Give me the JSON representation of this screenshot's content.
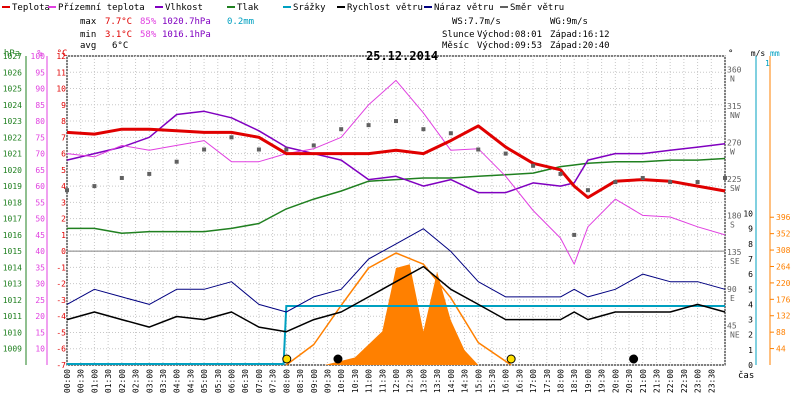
{
  "legend": [
    {
      "label": "Teplota",
      "color": "#e00000"
    },
    {
      "label": "Přízemní teplota",
      "color": "#e040e0"
    },
    {
      "label": "Vlhkost",
      "color": "#8000c0"
    },
    {
      "label": "Tlak",
      "color": "#208020"
    },
    {
      "label": "Srážky",
      "color": "#00a0c0"
    },
    {
      "label": "Rychlost větru",
      "color": "#000000"
    },
    {
      "label": "Náraz větru",
      "color": "#000080"
    },
    {
      "label": "Směr větru",
      "color": "#606060"
    }
  ],
  "stats": {
    "max_label": "max",
    "max_temp": "7.7°C",
    "max_hum": "85%",
    "max_press": "1020.7hPa",
    "max_rain": "0.2mm",
    "min_label": "min",
    "min_temp": "3.1°C",
    "min_hum": "58%",
    "min_press": "1016.1hPa",
    "avg_label": "avg",
    "avg_temp": "6°C"
  },
  "wind": {
    "ws": "WS:7.7m/s",
    "wg": "WG:9m/s"
  },
  "sun": {
    "label": "Slunce",
    "rise": "Východ:08:01",
    "set": "Západ:16:12"
  },
  "moon": {
    "label": "Měsíc",
    "rise": "Východ:09:53",
    "set": "Západ:20:40"
  },
  "date": "25.12.2014",
  "time_axis_label": "čas",
  "colors": {
    "temp": "#e00000",
    "ground": "#e040e0",
    "hum": "#8000c0",
    "press": "#208020",
    "rain": "#00a0c0",
    "speed": "#000000",
    "gust": "#000080",
    "dir": "#606060",
    "fill": "#ff8000"
  },
  "chart_data": {
    "type": "line",
    "title": "25.12.2014",
    "x_ticks": [
      "00:00",
      "00:30",
      "01:00",
      "01:30",
      "02:00",
      "02:30",
      "03:00",
      "03:30",
      "04:00",
      "04:30",
      "05:00",
      "05:30",
      "06:00",
      "06:30",
      "07:00",
      "07:30",
      "08:00",
      "08:30",
      "09:00",
      "09:30",
      "10:00",
      "10:30",
      "11:00",
      "11:30",
      "12:00",
      "12:30",
      "13:00",
      "13:30",
      "14:00",
      "14:30",
      "15:00",
      "15:30",
      "16:00",
      "16:30",
      "17:00",
      "17:30",
      "18:00",
      "18:30",
      "19:00",
      "19:30",
      "20:00",
      "20:30",
      "21:00",
      "21:30",
      "22:00",
      "22:30",
      "23:00",
      "23:30"
    ],
    "axes": {
      "hpa": {
        "label": "hPa",
        "ticks": [
          1027,
          1026,
          1025,
          1024,
          1023,
          1022,
          1021,
          1020,
          1019,
          1018,
          1017,
          1016,
          1015,
          1014,
          1013,
          1012,
          1011,
          1010,
          1009
        ]
      },
      "pct": {
        "label": "%",
        "ticks": [
          100,
          95,
          90,
          85,
          80,
          75,
          70,
          65,
          60,
          55,
          50,
          45,
          40,
          35,
          30,
          25,
          20,
          15,
          10
        ]
      },
      "degc": {
        "label": "°C",
        "ticks": [
          12,
          11,
          10,
          9,
          8,
          7,
          6,
          5,
          4,
          3,
          2,
          1,
          0,
          -1,
          -2,
          -3,
          -4,
          -5,
          -6,
          -7
        ]
      },
      "dir": {
        "label": "°",
        "ticks": [
          "360 N",
          "315 NW",
          "270 W",
          "225 SW",
          "180 S",
          "135 SE",
          "90 E",
          "45 NE"
        ]
      },
      "ms": {
        "label": "m/s",
        "ticks": [
          10,
          9,
          8,
          7,
          6,
          5,
          4,
          3,
          2,
          1,
          0
        ]
      },
      "mm": {
        "label": "mm",
        "ticks": [
          "1"
        ]
      },
      "rain_scale": {
        "ticks": [
          396,
          352,
          308,
          264,
          220,
          176,
          132,
          88,
          44
        ]
      }
    },
    "series": [
      {
        "name": "Teplota",
        "unit": "°C",
        "x": [
          0,
          1,
          2,
          3,
          4,
          5,
          6,
          7,
          8,
          9,
          10,
          11,
          12,
          13,
          14,
          15,
          16,
          17,
          18,
          18.5,
          19,
          20,
          21,
          22,
          23,
          24
        ],
        "y": [
          7.3,
          7.2,
          7.5,
          7.5,
          7.4,
          7.3,
          7.3,
          7.0,
          6.0,
          6.0,
          6.0,
          6.0,
          6.2,
          6.0,
          6.8,
          7.7,
          6.4,
          5.4,
          5.0,
          4.0,
          3.3,
          4.3,
          4.4,
          4.3,
          4.0,
          3.7
        ]
      },
      {
        "name": "Přízemní teplota",
        "unit": "°C",
        "x": [
          0,
          1,
          2,
          3,
          4,
          5,
          6,
          7,
          8,
          9,
          10,
          11,
          12,
          13,
          14,
          15,
          16,
          17,
          18,
          18.5,
          19,
          20,
          21,
          22,
          23,
          24
        ],
        "y": [
          6.0,
          5.8,
          6.5,
          6.2,
          6.5,
          6.8,
          5.5,
          5.5,
          6.0,
          6.3,
          7.0,
          9.0,
          10.5,
          8.5,
          6.2,
          6.3,
          4.6,
          2.5,
          0.8,
          -0.8,
          1.5,
          3.2,
          2.2,
          2.1,
          1.5,
          1.0
        ]
      },
      {
        "name": "Vlhkost",
        "unit": "%",
        "x": [
          0,
          1,
          2,
          3,
          4,
          5,
          6,
          7,
          8,
          9,
          10,
          11,
          12,
          13,
          14,
          15,
          16,
          17,
          18,
          18.5,
          19,
          20,
          21,
          22,
          23,
          24
        ],
        "y": [
          68,
          70,
          72,
          75,
          82,
          83,
          81,
          77,
          72,
          70,
          68,
          62,
          63,
          60,
          62,
          58,
          58,
          61,
          60,
          61,
          68,
          70,
          70,
          71,
          72,
          73
        ]
      },
      {
        "name": "Tlak",
        "unit": "hPa",
        "x": [
          0,
          1,
          2,
          3,
          4,
          5,
          6,
          7,
          8,
          9,
          10,
          11,
          12,
          13,
          14,
          15,
          16,
          17,
          18,
          18.5,
          19,
          20,
          21,
          22,
          23,
          24
        ],
        "y": [
          1016.4,
          1016.4,
          1016.1,
          1016.2,
          1016.2,
          1016.2,
          1016.4,
          1016.7,
          1017.6,
          1018.2,
          1018.7,
          1019.3,
          1019.4,
          1019.5,
          1019.5,
          1019.6,
          1019.7,
          1019.8,
          1020.2,
          1020.3,
          1020.4,
          1020.5,
          1020.5,
          1020.6,
          1020.6,
          1020.7
        ]
      },
      {
        "name": "Rychlost větru",
        "unit": "m/s",
        "x": [
          0,
          1,
          2,
          3,
          4,
          5,
          6,
          7,
          8,
          9,
          10,
          11,
          12,
          13,
          14,
          15,
          16,
          17,
          18,
          18.5,
          19,
          20,
          21,
          22,
          23,
          24
        ],
        "y": [
          3.0,
          3.5,
          3.0,
          2.5,
          3.2,
          3.0,
          3.5,
          2.5,
          2.2,
          3.0,
          3.5,
          4.5,
          5.5,
          6.5,
          5.0,
          4.0,
          3.0,
          3.0,
          3.0,
          3.5,
          3.0,
          3.5,
          3.5,
          3.5,
          4.0,
          3.5
        ]
      },
      {
        "name": "Náraz větru",
        "unit": "m/s",
        "x": [
          0,
          1,
          2,
          3,
          4,
          5,
          6,
          7,
          8,
          9,
          10,
          11,
          12,
          13,
          14,
          15,
          16,
          17,
          18,
          18.5,
          19,
          20,
          21,
          22,
          23,
          24
        ],
        "y": [
          4.0,
          5.0,
          4.5,
          4.0,
          5.0,
          5.0,
          5.5,
          4.0,
          3.5,
          4.5,
          5.0,
          7.0,
          8.0,
          9.0,
          7.5,
          5.5,
          4.5,
          4.5,
          4.5,
          5.0,
          4.5,
          5.0,
          6.0,
          5.5,
          5.5,
          5.0
        ]
      },
      {
        "name": "Směr větru",
        "unit": "°",
        "x": [
          0,
          1,
          2,
          3,
          4,
          5,
          6,
          7,
          8,
          9,
          10,
          11,
          12,
          13,
          14,
          15,
          16,
          17,
          18,
          18.5,
          19,
          20,
          21,
          22,
          23,
          24
        ],
        "y": [
          215,
          220,
          230,
          235,
          250,
          265,
          280,
          265,
          265,
          270,
          290,
          295,
          300,
          290,
          285,
          265,
          260,
          245,
          235,
          160,
          215,
          225,
          230,
          225,
          225,
          230
        ]
      },
      {
        "name": "Srážky",
        "unit": "mm",
        "x": [
          0,
          7.9,
          8.0,
          24
        ],
        "y": [
          0,
          0,
          0.2,
          0.2
        ]
      }
    ],
    "solar": {
      "x": [
        8.0,
        9,
        10,
        11,
        12,
        13,
        14,
        15,
        16.2
      ],
      "y": [
        0,
        55,
        160,
        260,
        300,
        270,
        180,
        60,
        0
      ]
    },
    "radiation": {
      "x": [
        9.4,
        10.5,
        11.5,
        12.0,
        12.5,
        13.0,
        13.5,
        14.0,
        14.5,
        15.0
      ],
      "y": [
        0,
        20,
        90,
        260,
        270,
        90,
        250,
        120,
        40,
        0
      ]
    },
    "sun_events": [
      "08:01",
      "16:12"
    ],
    "moon_events": [
      "09:53",
      "20:40"
    ]
  }
}
